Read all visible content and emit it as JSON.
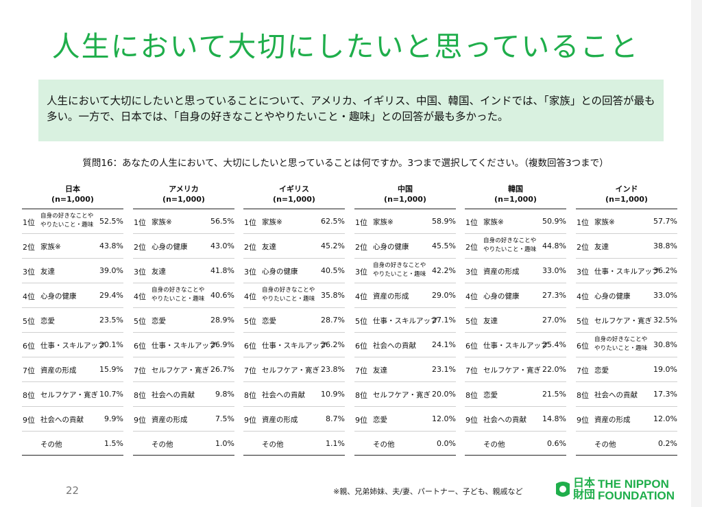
{
  "title": "人生において大切にしたいと思っていること",
  "summary": "人生において大切にしたいと思っていることについて、アメリカ、イギリス、中国、韓国、インドでは、「家族」との回答が最も多い。一方で、日本では、「自身の好きなことややりたいこと・趣味」との回答が最も多かった。",
  "question": "質問16：あなたの人生において、大切にしたいと思っていることは何ですか。3つまで選択してください。（複数回答3つまで）",
  "countries": [
    {
      "name": "日本",
      "n": "(n=1,000)",
      "rows": [
        {
          "rank": "1位",
          "item": "自身の好きなことや\nやりたいこと・趣味",
          "pct": "52.5%",
          "small": true
        },
        {
          "rank": "2位",
          "item": "家族※",
          "pct": "43.8%"
        },
        {
          "rank": "3位",
          "item": "友達",
          "pct": "39.0%"
        },
        {
          "rank": "4位",
          "item": "心身の健康",
          "pct": "29.4%"
        },
        {
          "rank": "5位",
          "item": "恋愛",
          "pct": "23.5%"
        },
        {
          "rank": "6位",
          "item": "仕事・スキルアップ",
          "pct": "20.1%"
        },
        {
          "rank": "7位",
          "item": "資産の形成",
          "pct": "15.9%"
        },
        {
          "rank": "8位",
          "item": "セルフケア・寛ぎ",
          "pct": "10.7%"
        },
        {
          "rank": "9位",
          "item": "社会への貢献",
          "pct": "9.9%"
        },
        {
          "rank": "",
          "item": "その他",
          "pct": "1.5%"
        }
      ]
    },
    {
      "name": "アメリカ",
      "n": "(n=1,000)",
      "rows": [
        {
          "rank": "1位",
          "item": "家族※",
          "pct": "56.5%"
        },
        {
          "rank": "2位",
          "item": "心身の健康",
          "pct": "43.0%"
        },
        {
          "rank": "3位",
          "item": "友達",
          "pct": "41.8%"
        },
        {
          "rank": "4位",
          "item": "自身の好きなことや\nやりたいこと・趣味",
          "pct": "40.6%",
          "small": true
        },
        {
          "rank": "5位",
          "item": "恋愛",
          "pct": "28.9%"
        },
        {
          "rank": "6位",
          "item": "仕事・スキルアップ",
          "pct": "26.9%"
        },
        {
          "rank": "7位",
          "item": "セルフケア・寛ぎ",
          "pct": "26.7%"
        },
        {
          "rank": "8位",
          "item": "社会への貢献",
          "pct": "9.8%"
        },
        {
          "rank": "9位",
          "item": "資産の形成",
          "pct": "7.5%"
        },
        {
          "rank": "",
          "item": "その他",
          "pct": "1.0%"
        }
      ]
    },
    {
      "name": "イギリス",
      "n": "(n=1,000)",
      "rows": [
        {
          "rank": "1位",
          "item": "家族※",
          "pct": "62.5%"
        },
        {
          "rank": "2位",
          "item": "友達",
          "pct": "45.2%"
        },
        {
          "rank": "3位",
          "item": "心身の健康",
          "pct": "40.5%"
        },
        {
          "rank": "4位",
          "item": "自身の好きなことや\nやりたいこと・趣味",
          "pct": "35.8%",
          "small": true
        },
        {
          "rank": "5位",
          "item": "恋愛",
          "pct": "28.7%"
        },
        {
          "rank": "6位",
          "item": "仕事・スキルアップ",
          "pct": "26.2%"
        },
        {
          "rank": "7位",
          "item": "セルフケア・寛ぎ",
          "pct": "23.8%"
        },
        {
          "rank": "8位",
          "item": "社会への貢献",
          "pct": "10.9%"
        },
        {
          "rank": "9位",
          "item": "資産の形成",
          "pct": "8.7%"
        },
        {
          "rank": "",
          "item": "その他",
          "pct": "1.1%"
        }
      ]
    },
    {
      "name": "中国",
      "n": "(n=1,000)",
      "rows": [
        {
          "rank": "1位",
          "item": "家族※",
          "pct": "58.9%"
        },
        {
          "rank": "2位",
          "item": "心身の健康",
          "pct": "45.5%"
        },
        {
          "rank": "3位",
          "item": "自身の好きなことや\nやりたいこと・趣味",
          "pct": "42.2%",
          "small": true
        },
        {
          "rank": "4位",
          "item": "資産の形成",
          "pct": "29.0%"
        },
        {
          "rank": "5位",
          "item": "仕事・スキルアップ",
          "pct": "27.1%"
        },
        {
          "rank": "6位",
          "item": "社会への貢献",
          "pct": "24.1%"
        },
        {
          "rank": "7位",
          "item": "友達",
          "pct": "23.1%"
        },
        {
          "rank": "8位",
          "item": "セルフケア・寛ぎ",
          "pct": "20.0%"
        },
        {
          "rank": "9位",
          "item": "恋愛",
          "pct": "12.0%"
        },
        {
          "rank": "",
          "item": "その他",
          "pct": "0.0%"
        }
      ]
    },
    {
      "name": "韓国",
      "n": "(n=1,000)",
      "rows": [
        {
          "rank": "1位",
          "item": "家族※",
          "pct": "50.9%"
        },
        {
          "rank": "2位",
          "item": "自身の好きなことや\nやりたいこと・趣味",
          "pct": "44.8%",
          "small": true
        },
        {
          "rank": "3位",
          "item": "資産の形成",
          "pct": "33.0%"
        },
        {
          "rank": "4位",
          "item": "心身の健康",
          "pct": "27.3%"
        },
        {
          "rank": "5位",
          "item": "友達",
          "pct": "27.0%"
        },
        {
          "rank": "6位",
          "item": "仕事・スキルアップ",
          "pct": "25.4%"
        },
        {
          "rank": "7位",
          "item": "セルフケア・寛ぎ",
          "pct": "22.0%"
        },
        {
          "rank": "8位",
          "item": "恋愛",
          "pct": "21.5%"
        },
        {
          "rank": "9位",
          "item": "社会への貢献",
          "pct": "14.8%"
        },
        {
          "rank": "",
          "item": "その他",
          "pct": "0.6%"
        }
      ]
    },
    {
      "name": "インド",
      "n": "(n=1,000)",
      "rows": [
        {
          "rank": "1位",
          "item": "家族※",
          "pct": "57.7%"
        },
        {
          "rank": "2位",
          "item": "友達",
          "pct": "38.8%"
        },
        {
          "rank": "3位",
          "item": "仕事・スキルアップ",
          "pct": "36.2%"
        },
        {
          "rank": "4位",
          "item": "心身の健康",
          "pct": "33.0%"
        },
        {
          "rank": "5位",
          "item": "セルフケア・寛ぎ",
          "pct": "32.5%"
        },
        {
          "rank": "6位",
          "item": "自身の好きなことや\nやりたいこと・趣味",
          "pct": "30.8%",
          "small": true
        },
        {
          "rank": "7位",
          "item": "恋愛",
          "pct": "19.0%"
        },
        {
          "rank": "8位",
          "item": "社会への貢献",
          "pct": "17.3%"
        },
        {
          "rank": "9位",
          "item": "資産の形成",
          "pct": "12.0%"
        },
        {
          "rank": "",
          "item": "その他",
          "pct": "0.2%"
        }
      ]
    }
  ],
  "footer": {
    "page": "22",
    "note": "※親、兄弟姉妹、夫/妻、パートナー、子ども、親戚など",
    "logo_jp": "日本財団",
    "logo_en_line1": "THE NIPPON",
    "logo_en_line2": "FOUNDATION",
    "brand_color": "#1fae4b"
  }
}
